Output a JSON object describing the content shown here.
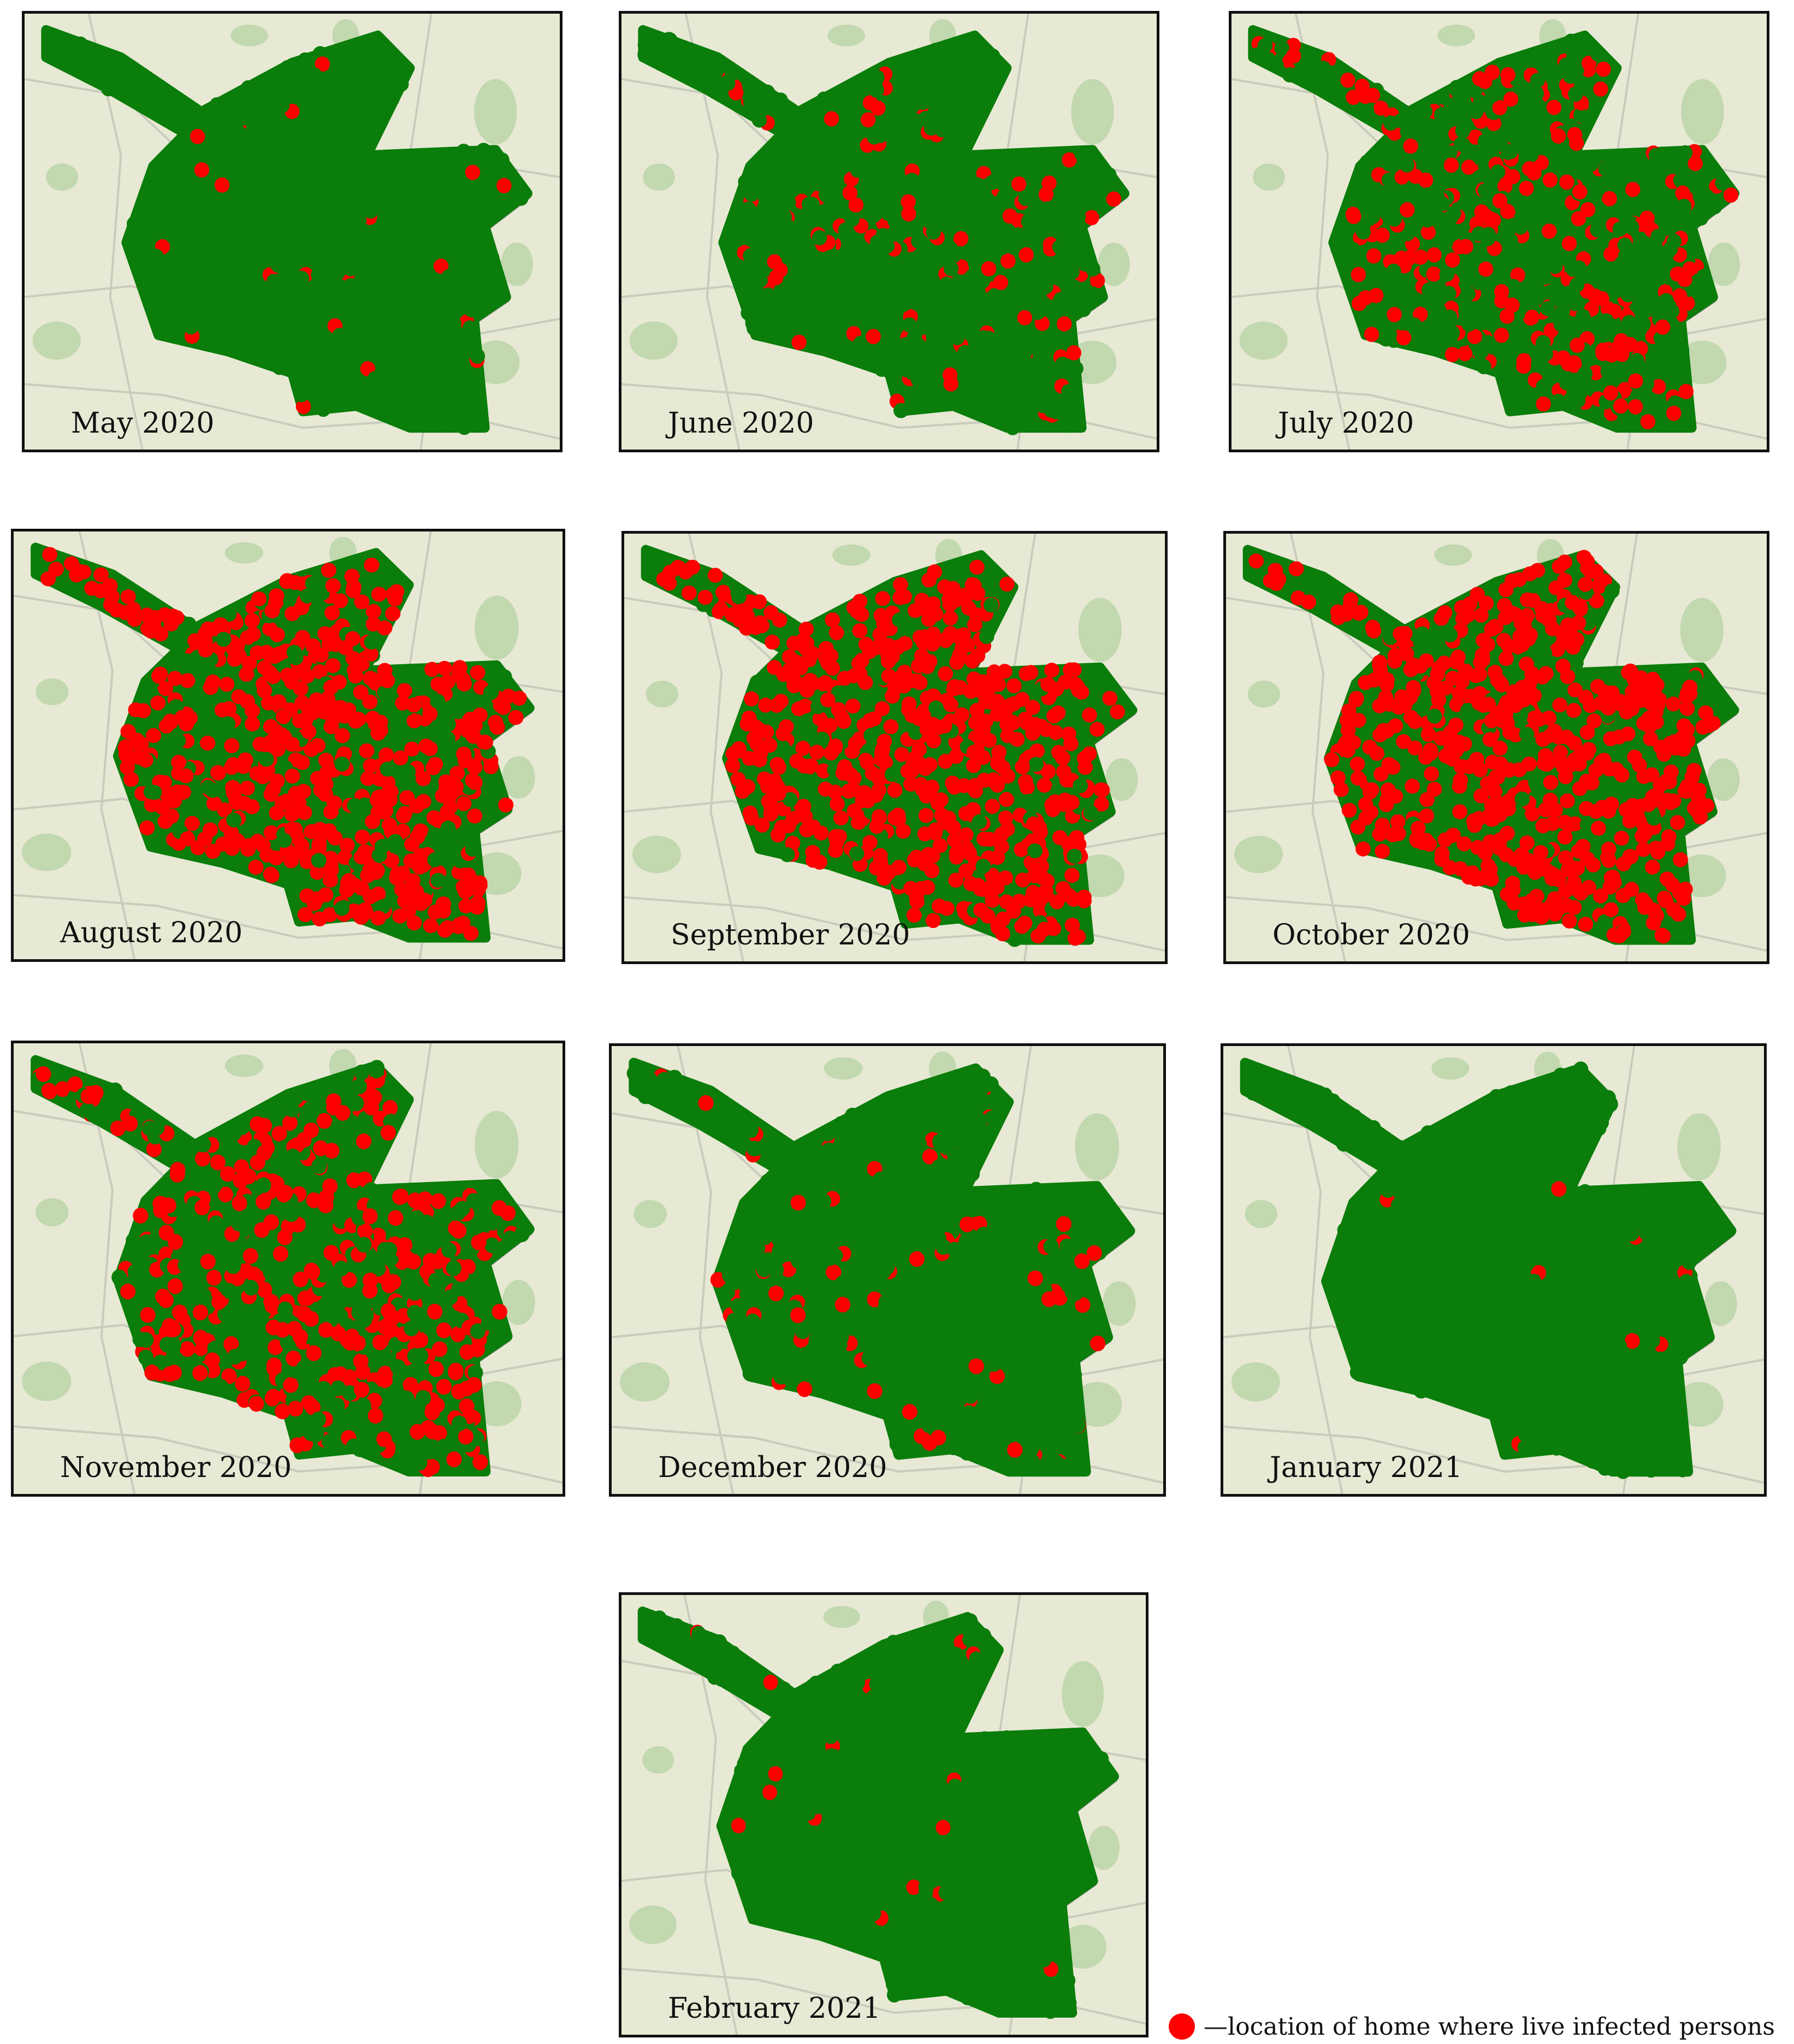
{
  "figure": {
    "colors": {
      "city_area": "#0a7d0a",
      "infected_home": "#ff0000",
      "map_background": "#e7e9d4",
      "shadow": "#8a8a8a"
    },
    "panels": [
      {
        "label": "May 2020",
        "infected_share": 0.03
      },
      {
        "label": "June 2020",
        "infected_share": 0.12
      },
      {
        "label": "July 2020",
        "infected_share": 0.4
      },
      {
        "label": "August 2020",
        "infected_share": 0.85
      },
      {
        "label": "September 2020",
        "infected_share": 0.92
      },
      {
        "label": "October 2020",
        "infected_share": 0.92
      },
      {
        "label": "November 2020",
        "infected_share": 0.55
      },
      {
        "label": "December 2020",
        "infected_share": 0.1
      },
      {
        "label": "January 2021",
        "infected_share": 0.01
      },
      {
        "label": "February 2021",
        "infected_share": 0.03
      }
    ],
    "legend": {
      "text": "—location of home where live infected persons"
    }
  }
}
